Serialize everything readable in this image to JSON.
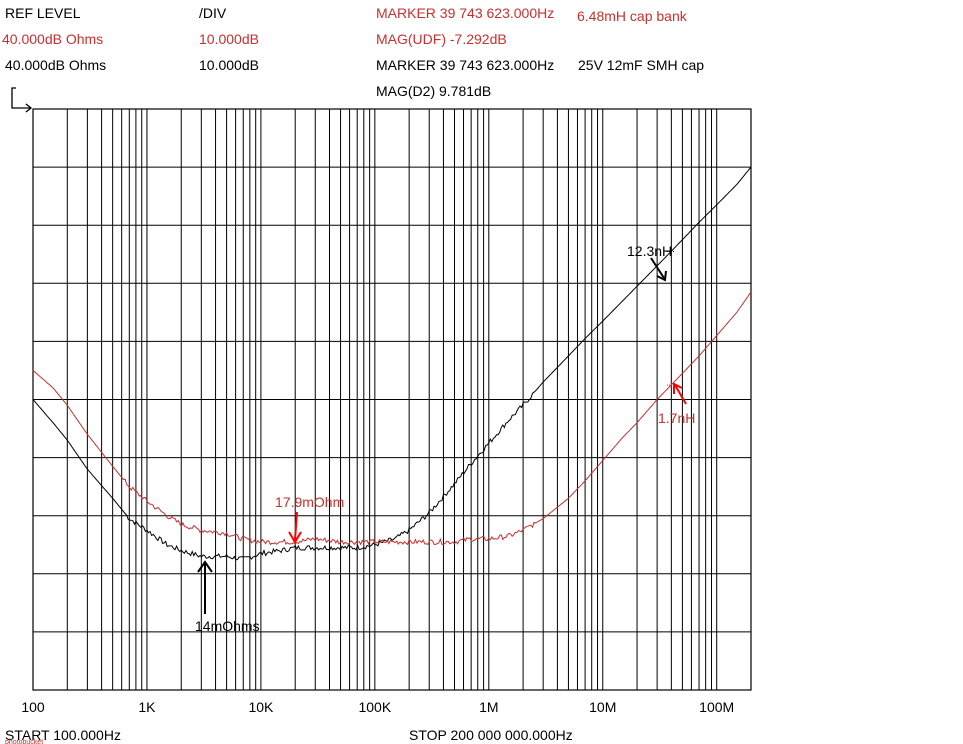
{
  "header": {
    "ref_level_label": "REF LEVEL",
    "div_label": "/DIV",
    "ref_red": "40.000dB Ohms",
    "ref_black": "40.000dB  Ohms",
    "div_red": "10.000dB",
    "div_black": "10.000dB",
    "marker_red": "MARKER 39 743 623.000Hz",
    "mag_red": "MAG(UDF)   -7.292dB",
    "marker_black": "MARKER 39 743 623.000Hz",
    "mag_black": "MAG(D2)     9.781dB",
    "legend_red": "6.48mH cap bank",
    "legend_black": "25V 12mF SMH cap"
  },
  "footer": {
    "start": "START 100.000Hz",
    "stop": "STOP 200 000 000.000Hz"
  },
  "colors": {
    "red": "#c8302e",
    "black": "#000000",
    "arrow_red": "#ff0000"
  },
  "chart_data": {
    "type": "line",
    "x_scale": "log",
    "xlim": [
      100,
      200000000
    ],
    "ylim": [
      -60,
      40
    ],
    "y_unit": "dB Ohms",
    "y_div": 10,
    "x_tick_labels": [
      {
        "x": 100,
        "label": "100"
      },
      {
        "x": 1000,
        "label": "1K"
      },
      {
        "x": 10000,
        "label": "10K"
      },
      {
        "x": 100000,
        "label": "100K"
      },
      {
        "x": 1000000,
        "label": "1M"
      },
      {
        "x": 10000000,
        "label": "10M"
      },
      {
        "x": 100000000,
        "label": "100M"
      }
    ],
    "grid": true,
    "series": [
      {
        "name": "25V 12mF SMH cap",
        "color": "#000000",
        "x": [
          100,
          150,
          200,
          300,
          500,
          700,
          1000,
          1500,
          2000,
          3000,
          4000,
          5000,
          7000,
          10000,
          15000,
          20000,
          30000,
          50000,
          70000,
          100000,
          150000,
          200000,
          300000,
          500000,
          700000,
          1000000,
          1500000,
          2000000,
          3000000,
          5000000,
          7000000,
          10000000,
          15000000,
          20000000,
          30000000,
          50000000,
          70000000,
          100000000,
          150000000,
          200000000
        ],
        "values": [
          -10,
          -14,
          -17,
          -22,
          -27,
          -30.5,
          -32.5,
          -35,
          -36,
          -37,
          -37,
          -37,
          -37.5,
          -36.5,
          -36,
          -35.5,
          -35.5,
          -35.5,
          -35.5,
          -35,
          -34,
          -32.5,
          -29.5,
          -24.5,
          -21,
          -17.5,
          -13.5,
          -11,
          -7,
          -2.5,
          0.5,
          3.5,
          7,
          9.5,
          13,
          17.5,
          20.5,
          23.5,
          27,
          30
        ]
      },
      {
        "name": "6.48mH cap bank",
        "color": "#c8302e",
        "x": [
          100,
          150,
          200,
          300,
          500,
          700,
          1000,
          1500,
          2000,
          3000,
          5000,
          7000,
          10000,
          15000,
          20000,
          30000,
          50000,
          70000,
          100000,
          200000,
          300000,
          500000,
          700000,
          1000000,
          1500000,
          2000000,
          3000000,
          5000000,
          7000000,
          10000000,
          15000000,
          20000000,
          30000000,
          50000000,
          70000000,
          100000000,
          150000000,
          200000000
        ],
        "values": [
          -5,
          -8,
          -11,
          -16,
          -21.5,
          -25,
          -27.5,
          -30,
          -31.5,
          -32.5,
          -33,
          -34,
          -34.5,
          -34.5,
          -34.5,
          -34,
          -34.5,
          -34.5,
          -34.5,
          -34.5,
          -34.5,
          -34.5,
          -34,
          -34,
          -33.5,
          -32.5,
          -30.5,
          -27,
          -24,
          -20.5,
          -16.5,
          -14,
          -10,
          -5.5,
          -2.5,
          1,
          5,
          8.5
        ]
      }
    ],
    "annotations": [
      {
        "text": "12.3nH",
        "color": "#000000"
      },
      {
        "text": "1.7nH",
        "color": "#c8302e"
      },
      {
        "text": "17.9mOhm",
        "color": "#c8302e"
      },
      {
        "text": "14mOhms",
        "color": "#000000"
      }
    ],
    "watermark": "photobucket"
  }
}
